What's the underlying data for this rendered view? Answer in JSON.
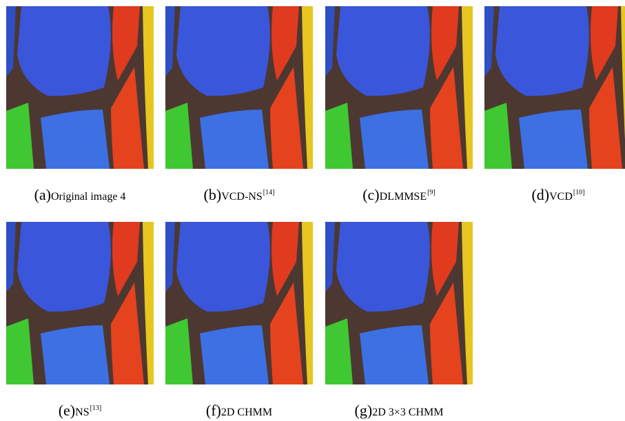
{
  "figure": {
    "panels": [
      {
        "label": "(a)",
        "caption": "Original image 4"
      },
      {
        "label": "(b)",
        "caption": "VCD-NS",
        "ref": "[14]"
      },
      {
        "label": "(c)",
        "caption": "DLMMSE",
        "ref": "[9]"
      },
      {
        "label": "(d)",
        "caption": "VCD",
        "ref": "[10]"
      },
      {
        "label": "(e)",
        "caption": "NS",
        "ref": "[13]"
      },
      {
        "label": "(f)",
        "caption": "2D CHMM"
      },
      {
        "label": "(g)",
        "caption": "2D 3×3 CHMM"
      }
    ]
  }
}
